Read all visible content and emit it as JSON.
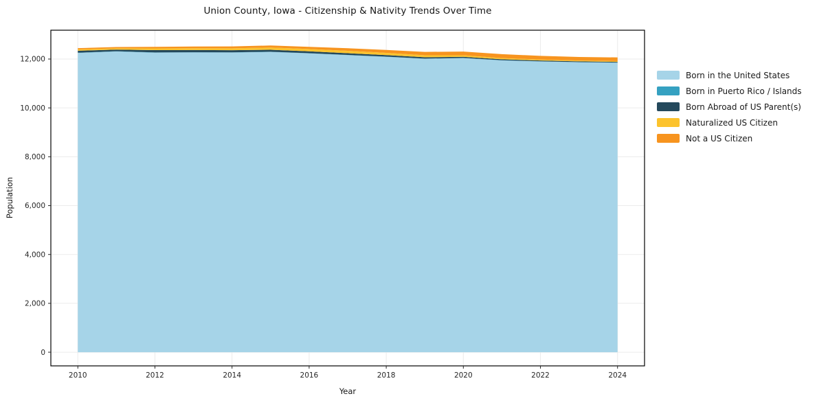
{
  "figure": {
    "background": "#ffffff"
  },
  "chart_data": {
    "type": "area",
    "stacked": true,
    "title": "Union County, Iowa - Citizenship & Nativity Trends Over Time",
    "xlabel": "Year",
    "ylabel": "Population",
    "x": [
      2010,
      2011,
      2012,
      2013,
      2014,
      2015,
      2016,
      2017,
      2018,
      2019,
      2020,
      2021,
      2022,
      2023,
      2024
    ],
    "series": [
      {
        "name": "Born in the United States",
        "color": "#a6d4e8",
        "values": [
          12250,
          12310,
          12260,
          12270,
          12265,
          12290,
          12230,
          12160,
          12090,
          12010,
          12040,
          11945,
          11900,
          11870,
          11850
        ]
      },
      {
        "name": "Born in Puerto Rico / Islands",
        "color": "#35a1c1",
        "values": [
          10,
          8,
          10,
          8,
          10,
          10,
          10,
          8,
          8,
          8,
          5,
          5,
          5,
          5,
          5
        ]
      },
      {
        "name": "Born Abroad of US Parent(s)",
        "color": "#24495c",
        "values": [
          80,
          70,
          95,
          90,
          85,
          80,
          75,
          70,
          65,
          55,
          45,
          40,
          35,
          30,
          30
        ]
      },
      {
        "name": "Naturalized US Citizen",
        "color": "#fcc32d",
        "values": [
          55,
          50,
          70,
          75,
          80,
          90,
          95,
          100,
          90,
          80,
          65,
          50,
          40,
          35,
          30
        ]
      },
      {
        "name": "Not a US Citizen",
        "color": "#f7941f",
        "values": [
          50,
          55,
          65,
          70,
          75,
          85,
          90,
          105,
          120,
          140,
          150,
          160,
          150,
          145,
          150
        ]
      }
    ],
    "xticks": [
      2010,
      2012,
      2014,
      2016,
      2018,
      2020,
      2022,
      2024
    ],
    "xtick_labels": [
      "2010",
      "2012",
      "2014",
      "2016",
      "2018",
      "2020",
      "2022",
      "2024"
    ],
    "yticks": [
      0,
      2000,
      4000,
      6000,
      8000,
      10000,
      12000
    ],
    "ytick_labels": [
      "0",
      "2,000",
      "4,000",
      "6,000",
      "8,000",
      "10,000",
      "12,000"
    ],
    "xlim": [
      2009.3,
      2024.7
    ],
    "ylim": [
      -560,
      13180
    ],
    "grid": true,
    "grid_color": "#ebebeb",
    "axis_color": "#000000",
    "tick_color": "#262626",
    "legend_position": "right"
  }
}
